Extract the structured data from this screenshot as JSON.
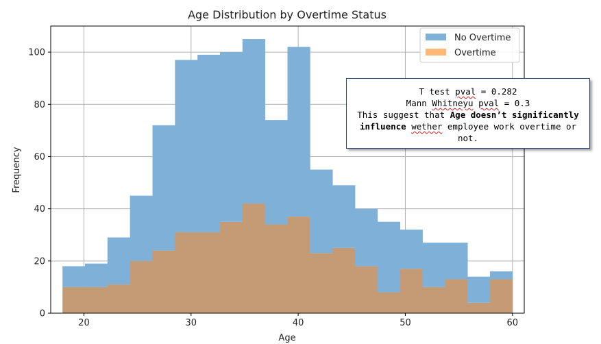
{
  "chart_data": {
    "type": "histogram",
    "title": "Age Distribution by Overtime Status",
    "xlabel": "Age",
    "ylabel": "Frequency",
    "xlim": [
      16.9,
      61.1
    ],
    "ylim": [
      0,
      110
    ],
    "x_ticks": [
      20,
      30,
      40,
      50,
      60
    ],
    "y_ticks": [
      0,
      20,
      40,
      60,
      80,
      100
    ],
    "grid": true,
    "legend_position": "top-right",
    "bin_edges": [
      18,
      20.1,
      22.2,
      24.3,
      26.4,
      28.5,
      30.6,
      32.7,
      34.8,
      36.9,
      39.0,
      41.1,
      43.2,
      45.3,
      47.4,
      49.5,
      51.6,
      53.7,
      55.8,
      57.9,
      60.0
    ],
    "series": [
      {
        "name": "No Overtime",
        "color": "#7fb1d8",
        "values": [
          18,
          19,
          29,
          45,
          72,
          97,
          99,
          100,
          105,
          74,
          102,
          55,
          49,
          40,
          35,
          32,
          27,
          27,
          14,
          16
        ]
      },
      {
        "name": "Overtime",
        "color": "#ffb877",
        "values": [
          10,
          10,
          11,
          20,
          24,
          31,
          31,
          35,
          42,
          34,
          37,
          23,
          25,
          18,
          8,
          17,
          10,
          13,
          4,
          13
        ]
      }
    ],
    "overlap_color": "#c49b74"
  },
  "annotation": {
    "line1_prefix": "T test ",
    "line1_squiggle": "pval",
    "line1_suffix": " = 0.282",
    "line2_prefix": "Mann ",
    "line2_squiggle1": "Whitneyu",
    "line2_mid": " ",
    "line2_squiggle2": "pval",
    "line2_suffix": " = 0.3",
    "line3_prefix": "This suggest that ",
    "line3_bold": "Age doesn’t significantly influence",
    "line3_mid": " ",
    "line3_squiggle": "wether",
    "line3_suffix": " employee work overtime or not."
  }
}
